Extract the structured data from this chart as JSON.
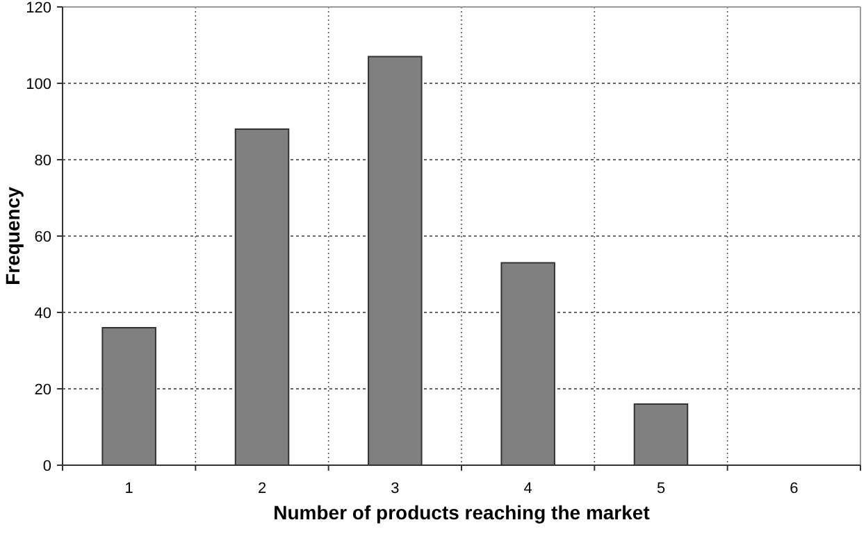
{
  "chart_data": {
    "type": "bar",
    "xlabel": "Number of products reaching the market",
    "ylabel": "Frequency",
    "categories": [
      "1",
      "2",
      "3",
      "4",
      "5",
      "6"
    ],
    "values": [
      36,
      88,
      107,
      53,
      16,
      0
    ],
    "color": "#808080",
    "ylim": [
      0,
      120
    ],
    "yticks": [
      0,
      20,
      40,
      60,
      80,
      100,
      120
    ],
    "grid": true
  }
}
